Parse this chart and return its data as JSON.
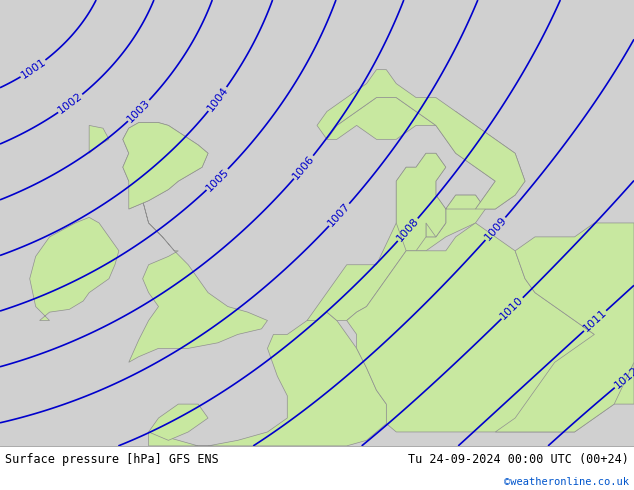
{
  "title_left": "Surface pressure [hPa] GFS ENS",
  "title_right": "Tu 24-09-2024 00:00 UTC (00+24)",
  "title_right2": "©weatheronline.co.uk",
  "bg_sea_color": "#d0d0d0",
  "bg_land_color": "#c8e8a0",
  "coast_color": "#909090",
  "isobar_color": "#0000cc",
  "isobar_linewidth": 1.2,
  "label_fontsize": 8,
  "bottom_text_color": "#000000",
  "credit_color": "#0055cc",
  "figsize": [
    6.34,
    4.9
  ],
  "dpi": 100,
  "isobar_levels": [
    1001,
    1002,
    1003,
    1004,
    1005,
    1006,
    1007,
    1008,
    1009,
    1010,
    1011,
    1012
  ]
}
